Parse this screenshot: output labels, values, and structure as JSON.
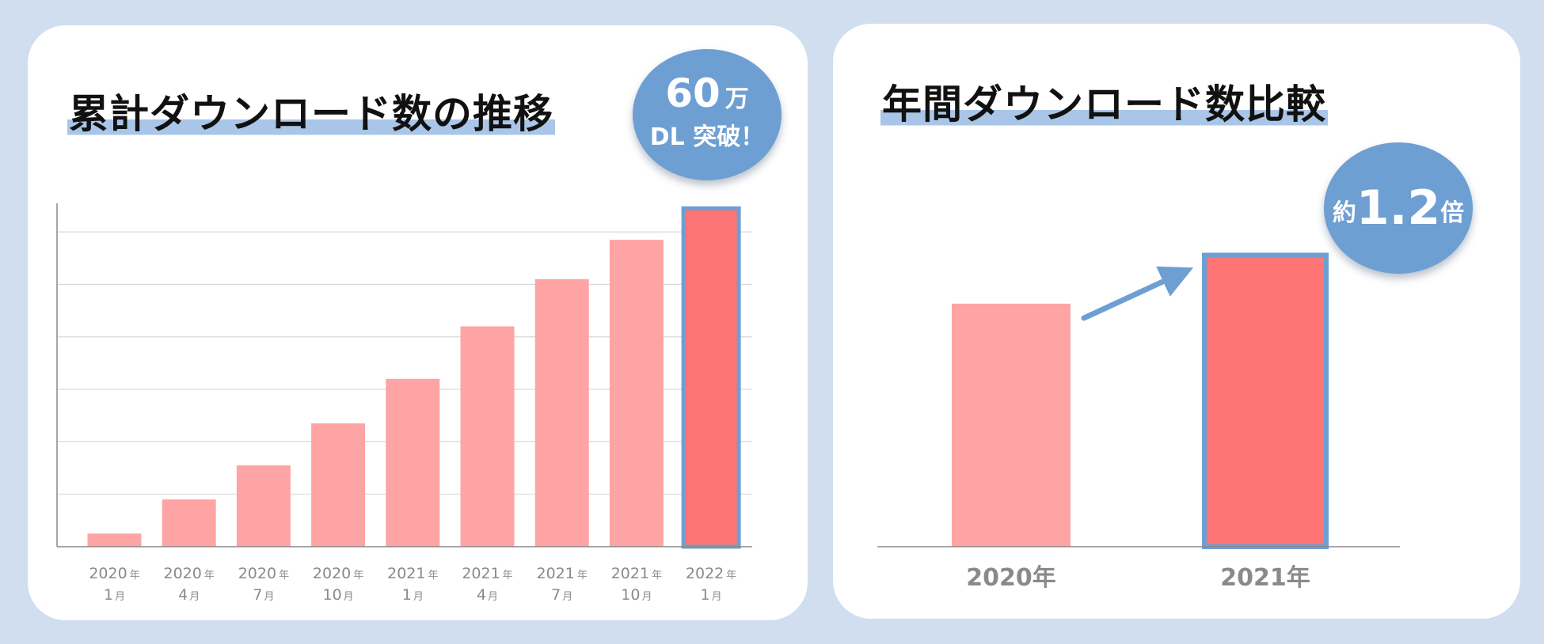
{
  "left": {
    "title": "累計ダウンロード数の推移",
    "badge": {
      "line1_number": "60",
      "line1_unit": "万",
      "line2": "DL 突破！"
    }
  },
  "right": {
    "title": "年間ダウンロード数比較",
    "badge": {
      "prefix": "約",
      "value": "1.2",
      "suffix": "倍"
    }
  },
  "colors": {
    "bar": "#ffa4a4",
    "highlight_bar": "#ff7474",
    "highlight_border": "#6e9fd3",
    "accent": "#6e9fd3",
    "background": "#d0deef"
  },
  "chart_data": [
    {
      "type": "bar",
      "title": "累計ダウンロード数の推移",
      "categories": [
        {
          "year": "2020",
          "year_unit": "年",
          "month": "1",
          "month_unit": "月"
        },
        {
          "year": "2020",
          "year_unit": "年",
          "month": "4",
          "month_unit": "月"
        },
        {
          "year": "2020",
          "year_unit": "年",
          "month": "7",
          "month_unit": "月"
        },
        {
          "year": "2020",
          "year_unit": "年",
          "month": "10",
          "month_unit": "月"
        },
        {
          "year": "2021",
          "year_unit": "年",
          "month": "1",
          "month_unit": "月"
        },
        {
          "year": "2021",
          "year_unit": "年",
          "month": "4",
          "month_unit": "月"
        },
        {
          "year": "2021",
          "year_unit": "年",
          "month": "7",
          "month_unit": "月"
        },
        {
          "year": "2021",
          "year_unit": "年",
          "month": "10",
          "month_unit": "月"
        },
        {
          "year": "2022",
          "year_unit": "年",
          "month": "1",
          "month_unit": "月"
        }
      ],
      "values": [
        2.5,
        9.0,
        15.5,
        23.5,
        32.0,
        42.0,
        51.0,
        58.5,
        64.5
      ],
      "highlight_index": 8,
      "ylim": [
        0,
        65
      ],
      "grid": true,
      "gridlines": [
        10,
        20,
        30,
        40,
        50,
        60
      ]
    },
    {
      "type": "bar",
      "title": "年間ダウンロード数比較",
      "categories": [
        "2020年",
        "2021年"
      ],
      "values": [
        1.0,
        1.2
      ],
      "highlight_index": 1,
      "ylim": [
        0,
        1.4
      ],
      "grid": false
    }
  ]
}
